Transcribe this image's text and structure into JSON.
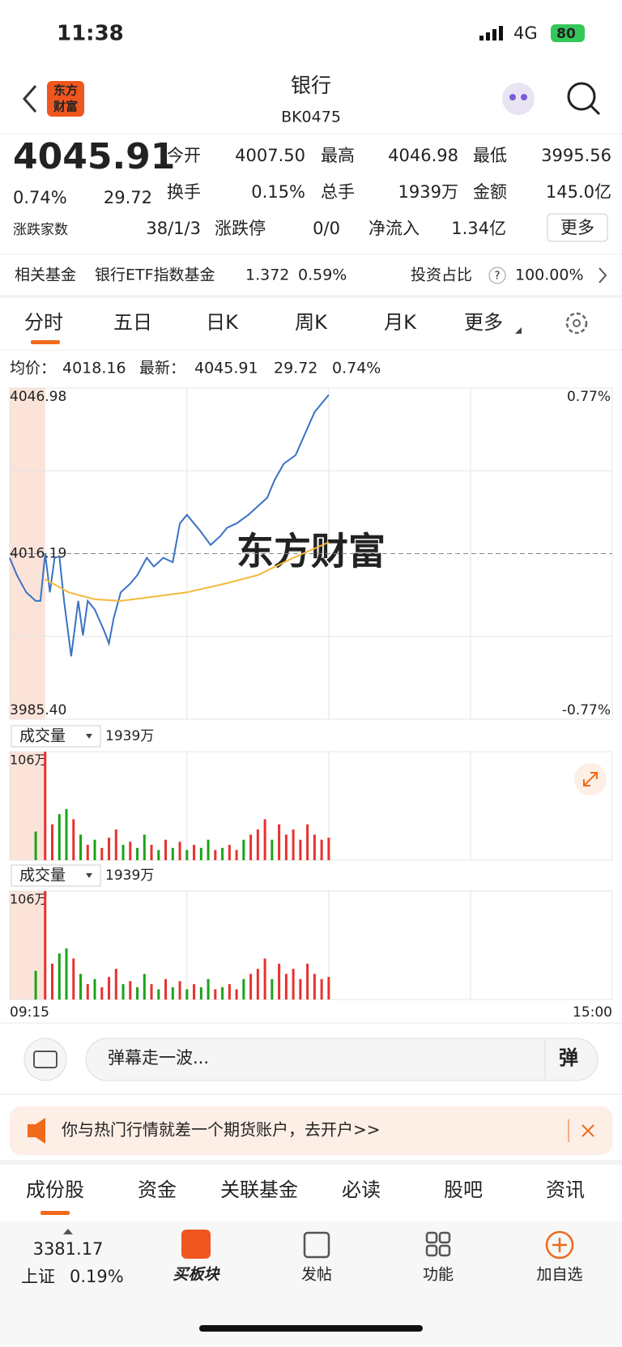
{
  "status_bar": {
    "time": "11:38",
    "network": "4G",
    "battery": "80"
  },
  "header": {
    "logo_lines": [
      "东方",
      "财富"
    ],
    "title": "银行",
    "code": "BK0475"
  },
  "quote": {
    "price": "4045.91",
    "change_pct": "0.74%",
    "change": "29.72",
    "stats": [
      {
        "label": "今开",
        "value": "4007.50"
      },
      {
        "label": "最高",
        "value": "4046.98"
      },
      {
        "label": "最低",
        "value": "3995.56"
      },
      {
        "label": "换手",
        "value": "0.15%"
      },
      {
        "label": "总手",
        "value": "1939万"
      },
      {
        "label": "金额",
        "value": "145.0亿"
      }
    ],
    "breadth_label": "涨跌家数",
    "breadth": [
      "38",
      "1",
      "3"
    ],
    "limit_label": "涨跌停",
    "limit": [
      "0",
      "0"
    ],
    "separator": "/",
    "inflow_label": "净流入",
    "inflow": "1.34亿",
    "more": "更多"
  },
  "fund": {
    "label": "相关基金",
    "name": "银行ETF指数基金",
    "price": "1.372",
    "change": "0.59%",
    "ratio_label": "投资占比",
    "ratio_help": "?",
    "ratio": "100.00%"
  },
  "chart_tabs": [
    "分时",
    "五日",
    "日K",
    "周K",
    "月K",
    "更多"
  ],
  "summary": {
    "avg_label": "均价：",
    "avg": "4018.16",
    "last_label": "最新：",
    "last": "4045.91",
    "change": "29.72",
    "change_pct": "0.74%"
  },
  "chart_data": [
    {
      "type": "line",
      "xlim": [
        0,
        255
      ],
      "xticks": [
        {
          "value": 0,
          "label": "09:15"
        },
        {
          "value": 255,
          "label": "15:00"
        }
      ],
      "xgrid": [
        15,
        75,
        135,
        195
      ],
      "ylim": [
        3985.4,
        4046.98
      ],
      "yticks": [
        4046.98,
        4016.19,
        {
          "value": 3985.4,
          "label": "3985.40"
        }
      ],
      "y2lim": [
        -0.77,
        0.77
      ],
      "y2ticks": [
        {
          "value": 0.77,
          "label": "0.77%"
        },
        {
          "value": -0.77,
          "label": "-0.77%"
        }
      ],
      "watermark": "东方财富",
      "series": [
        {
          "color": "#3a72c5",
          "x": [
            0,
            3,
            7,
            11,
            13,
            15,
            17,
            19,
            21,
            23,
            26,
            29,
            31,
            33,
            36,
            40,
            42,
            44,
            47,
            51,
            54,
            58,
            61,
            65,
            69,
            72,
            75,
            78,
            81,
            85,
            89,
            92,
            96,
            101,
            105,
            109,
            112,
            116,
            121,
            125,
            129,
            132,
            135
          ],
          "values": [
            4015.4,
            4012.2,
            4009.0,
            4007.4,
            4007.4,
            4016.2,
            4009.0,
            4015.4,
            4015.7,
            4007.4,
            3997.1,
            4007.4,
            4001.0,
            4007.4,
            4005.8,
            4001.8,
            3999.5,
            4004.2,
            4009.0,
            4010.6,
            4012.2,
            4015.4,
            4013.8,
            4015.4,
            4014.6,
            4021.8,
            4023.4,
            4021.8,
            4020.2,
            4017.8,
            4019.4,
            4021.0,
            4021.8,
            4023.4,
            4025.0,
            4026.6,
            4029.8,
            4032.9,
            4034.5,
            4038.5,
            4042.5,
            4044.1,
            4045.7
          ]
        },
        {
          "color": "#f5b83d",
          "x": [
            15,
            25,
            36,
            47,
            61,
            75,
            91,
            105,
            120,
            135
          ],
          "values": [
            4011.4,
            4009.0,
            4007.7,
            4007.4,
            4008.2,
            4009.0,
            4010.6,
            4012.2,
            4015.4,
            4018.3
          ]
        }
      ]
    },
    {
      "type": "bar",
      "header": "成交量",
      "total": "1939万",
      "xlim": [
        0,
        255
      ],
      "ylim": [
        0,
        106
      ],
      "yticks": [
        {
          "value": 106,
          "label": "106万"
        }
      ],
      "x": [
        11,
        15,
        18,
        21,
        24,
        27,
        30,
        33,
        36,
        39,
        42,
        45,
        48,
        51,
        54,
        57,
        60,
        63,
        66,
        69,
        72,
        75,
        78,
        81,
        84,
        87,
        90,
        93,
        96,
        99,
        102,
        105,
        108,
        111,
        114,
        117,
        120,
        123,
        126,
        129,
        132,
        135
      ],
      "values": [
        28,
        106,
        35,
        45,
        50,
        40,
        25,
        15,
        20,
        12,
        22,
        30,
        15,
        18,
        12,
        25,
        15,
        10,
        20,
        12,
        18,
        10,
        15,
        12,
        20,
        10,
        12,
        15,
        10,
        20,
        25,
        30,
        40,
        20,
        35,
        25,
        30,
        20,
        35,
        25,
        20,
        22
      ],
      "colors": [
        "#1aa31a",
        "#e8312f",
        "#e8312f",
        "#1aa31a",
        "#1aa31a",
        "#e8312f",
        "#1aa31a",
        "#e8312f",
        "#1aa31a",
        "#e8312f",
        "#e8312f",
        "#e8312f",
        "#1aa31a",
        "#e8312f",
        "#1aa31a",
        "#1aa31a",
        "#e8312f",
        "#1aa31a",
        "#e8312f",
        "#1aa31a",
        "#e8312f",
        "#1aa31a",
        "#e8312f",
        "#1aa31a",
        "#1aa31a",
        "#e8312f",
        "#1aa31a",
        "#e8312f",
        "#e8312f",
        "#1aa31a",
        "#e8312f",
        "#e8312f",
        "#e8312f",
        "#1aa31a",
        "#e8312f",
        "#e8312f",
        "#e8312f",
        "#e8312f",
        "#e8312f",
        "#e8312f",
        "#e8312f",
        "#e8312f"
      ]
    },
    {
      "type": "bar",
      "header": "成交量",
      "total": "1939万",
      "xlim": [
        0,
        255
      ],
      "ylim": [
        0,
        106
      ],
      "yticks": [
        {
          "value": 106,
          "label": "106万"
        }
      ],
      "x": [
        11,
        15,
        18,
        21,
        24,
        27,
        30,
        33,
        36,
        39,
        42,
        45,
        48,
        51,
        54,
        57,
        60,
        63,
        66,
        69,
        72,
        75,
        78,
        81,
        84,
        87,
        90,
        93,
        96,
        99,
        102,
        105,
        108,
        111,
        114,
        117,
        120,
        123,
        126,
        129,
        132,
        135
      ],
      "values": [
        28,
        106,
        35,
        45,
        50,
        40,
        25,
        15,
        20,
        12,
        22,
        30,
        15,
        18,
        12,
        25,
        15,
        10,
        20,
        12,
        18,
        10,
        15,
        12,
        20,
        10,
        12,
        15,
        10,
        20,
        25,
        30,
        40,
        20,
        35,
        25,
        30,
        20,
        35,
        25,
        20,
        22
      ],
      "colors": [
        "#1aa31a",
        "#e8312f",
        "#e8312f",
        "#1aa31a",
        "#1aa31a",
        "#e8312f",
        "#1aa31a",
        "#e8312f",
        "#1aa31a",
        "#e8312f",
        "#e8312f",
        "#e8312f",
        "#1aa31a",
        "#e8312f",
        "#1aa31a",
        "#1aa31a",
        "#e8312f",
        "#1aa31a",
        "#e8312f",
        "#1aa31a",
        "#e8312f",
        "#1aa31a",
        "#e8312f",
        "#1aa31a",
        "#1aa31a",
        "#e8312f",
        "#1aa31a",
        "#e8312f",
        "#e8312f",
        "#1aa31a",
        "#e8312f",
        "#e8312f",
        "#e8312f",
        "#1aa31a",
        "#e8312f",
        "#e8312f",
        "#e8312f",
        "#e8312f",
        "#e8312f",
        "#e8312f",
        "#e8312f",
        "#e8312f"
      ]
    }
  ],
  "danmaku": {
    "placeholder": "弹幕走一波...",
    "button": "弹"
  },
  "banner": {
    "text": "你与热门行情就差一个期货账户，去开户>>"
  },
  "bottom_tabs": [
    "成份股",
    "资金",
    "关联基金",
    "必读",
    "股吧",
    "资讯"
  ],
  "nav": {
    "index_value": "3381.17",
    "index_name": "上证",
    "index_change": "0.19%",
    "items": [
      "买板块",
      "发帖",
      "功能",
      "加自选"
    ]
  }
}
